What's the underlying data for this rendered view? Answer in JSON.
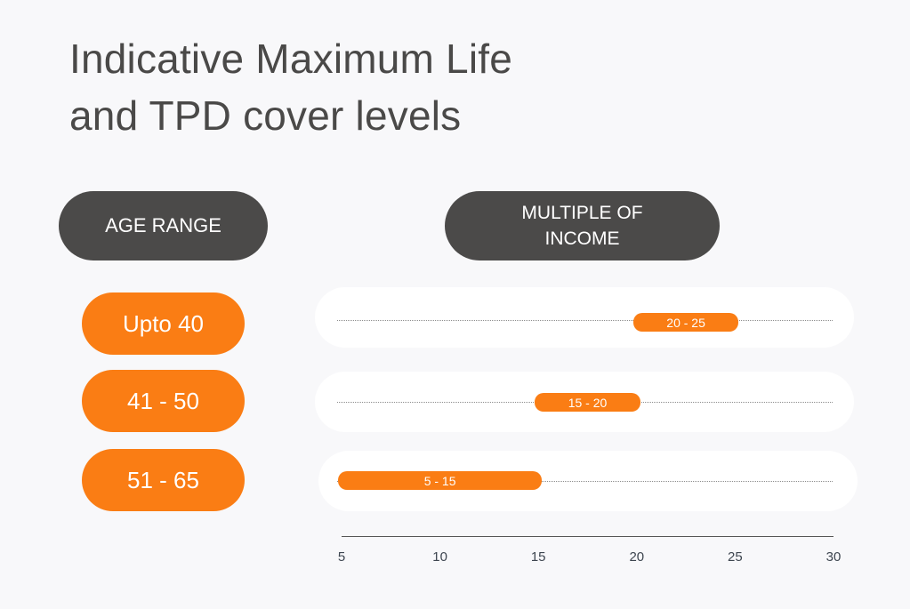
{
  "title": {
    "line1": "Indicative Maximum Life",
    "line2": "and TPD cover levels"
  },
  "headers": {
    "age_range": "AGE RANGE",
    "multiple_line1": "MULTIPLE OF",
    "multiple_line2": "INCOME"
  },
  "colors": {
    "accent": "#fa7d14",
    "header_bg": "#4b4a49",
    "background": "#f8f8fa",
    "track": "#ffffff",
    "text_dark": "#4a4948"
  },
  "chart_data": {
    "type": "bar",
    "orientation": "horizontal-range",
    "title": "Indicative Maximum Life and TPD cover levels",
    "ylabel": "AGE RANGE",
    "xlabel": "MULTIPLE OF INCOME",
    "categories": [
      "Upto 40",
      "41 - 50",
      "51 - 65"
    ],
    "ranges": [
      {
        "category": "Upto 40",
        "start": 20,
        "end": 25,
        "label": "20 - 25"
      },
      {
        "category": "41 - 50",
        "start": 15,
        "end": 20,
        "label": "15 - 20"
      },
      {
        "category": "51 - 65",
        "start": 5,
        "end": 15,
        "label": "5 - 15"
      }
    ],
    "xlim": [
      5,
      30
    ],
    "xticks": [
      "5",
      "10",
      "15",
      "20",
      "25",
      "30"
    ],
    "grid": false,
    "legend": "none"
  }
}
